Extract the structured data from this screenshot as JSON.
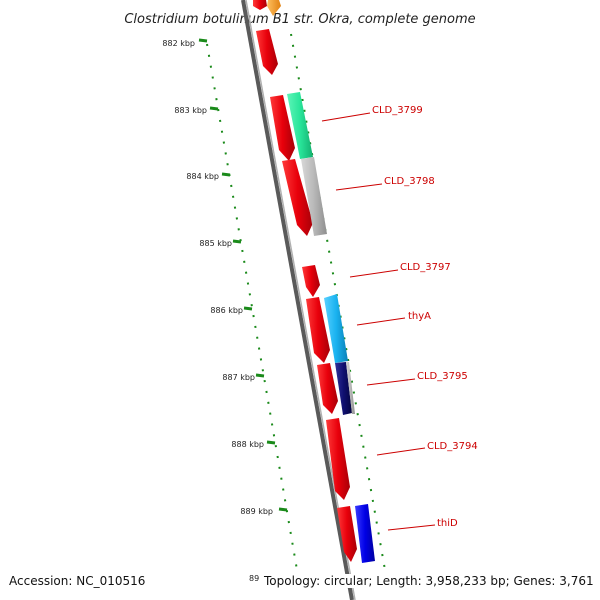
{
  "header": {
    "title": "Clostridium botulinum B1 str. Okra, complete genome"
  },
  "footer": {
    "accession": "Accession: NC_010516",
    "topology": "Topology: circular; Length: 3,958,233 bp; Genes: 3,761",
    "partial_tick_label": "89"
  },
  "colors": {
    "forward_strand": "#e8000b",
    "reverse_strand": "#b8b8b8",
    "backbone": "#8c8c8c",
    "tick": "#1a8a1a",
    "label": "#cc0000",
    "cld3799_gene": "#29e59a",
    "thyA_gene": "#1ab3f0",
    "cld3795_gene": "#101070",
    "thiD_gene": "#0000e6",
    "top_partial_gene": "#f29a1a"
  },
  "ruler": {
    "ticks": [
      "882 kbp",
      "883 kbp",
      "884 kbp",
      "885 kbp",
      "886 kbp",
      "887 kbp",
      "888 kbp",
      "889 kbp"
    ]
  },
  "genes": [
    {
      "label": "CLD_3799",
      "icon": "green-gene-arrow"
    },
    {
      "label": "CLD_3798",
      "icon": "gray-gene-arrow"
    },
    {
      "label": "CLD_3797",
      "icon": "red-gene-arrow"
    },
    {
      "label": "thyA",
      "icon": "cyan-gene-arrow"
    },
    {
      "label": "CLD_3795",
      "icon": "navy-gene-arrow"
    },
    {
      "label": "CLD_3794",
      "icon": "red-gene-arrow"
    },
    {
      "label": "thiD",
      "icon": "blue-gene-arrow"
    }
  ]
}
